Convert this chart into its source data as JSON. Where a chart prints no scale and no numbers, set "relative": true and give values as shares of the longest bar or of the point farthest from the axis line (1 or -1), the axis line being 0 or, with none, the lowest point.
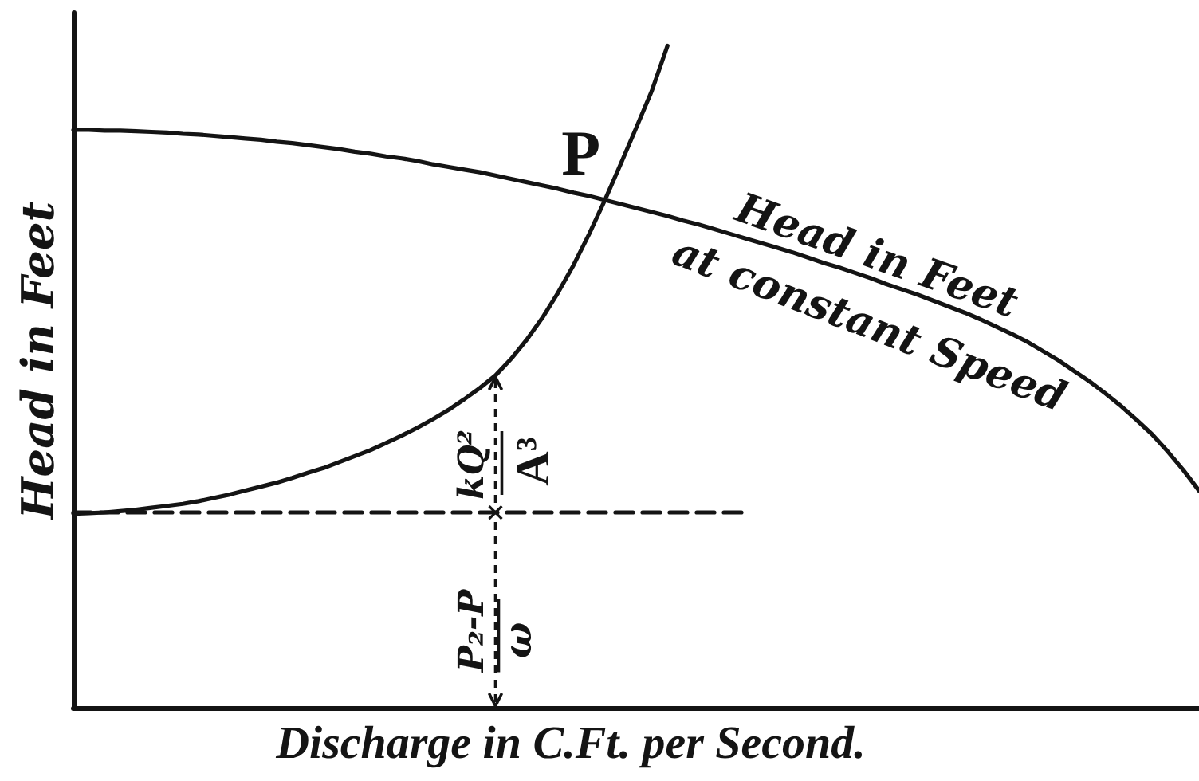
{
  "chart_data": {
    "type": "line",
    "relative": true,
    "tick_labels": false,
    "xlabel": "Discharge in C.Ft. per Second.",
    "ylabel": "Head in Feet",
    "categories": [
      null,
      null,
      null,
      null,
      null,
      null,
      null,
      null,
      null,
      null,
      null,
      null,
      null,
      null,
      null,
      null,
      null,
      null,
      null,
      null,
      null,
      null,
      null,
      null,
      null,
      null,
      null,
      null,
      null,
      null,
      null,
      null,
      null,
      null,
      null,
      null,
      null,
      null,
      null,
      null,
      null,
      null,
      null,
      null,
      null,
      null,
      null,
      null,
      null,
      null,
      null,
      null,
      null,
      null,
      null,
      null,
      null,
      null,
      null,
      null,
      null,
      null,
      null,
      null,
      null,
      null,
      null,
      null,
      null,
      null,
      null,
      null,
      null
    ],
    "series": [
      {
        "name": "Head in Feet at constant Speed",
        "color": "#141414",
        "values": [
          0.873,
          0.873,
          0.872,
          0.872,
          0.871,
          0.87,
          0.869,
          0.867,
          0.866,
          0.864,
          0.862,
          0.86,
          0.858,
          0.855,
          0.853,
          0.85,
          0.847,
          0.844,
          0.84,
          0.837,
          0.833,
          0.83,
          0.826,
          0.821,
          0.817,
          0.813,
          0.809,
          0.804,
          0.799,
          0.794,
          0.789,
          0.784,
          0.778,
          0.773,
          0.767,
          0.761,
          0.755,
          0.749,
          0.743,
          0.736,
          0.73,
          0.723,
          0.716,
          0.709,
          0.702,
          0.695,
          0.688,
          0.68,
          0.672,
          0.665,
          0.657,
          0.649,
          0.64,
          0.632,
          0.624,
          0.615,
          0.606,
          0.597,
          0.587,
          0.576,
          0.565,
          0.553,
          0.539,
          0.525,
          0.509,
          0.493,
          0.475,
          0.456,
          0.435,
          0.413,
          0.387,
          0.359,
          0.328
        ]
      },
      {
        "color": "#141414",
        "values": [
          0.293,
          0.294,
          0.295,
          0.297,
          0.299,
          0.302,
          0.305,
          0.308,
          0.312,
          0.317,
          0.322,
          0.328,
          0.334,
          0.34,
          0.347,
          0.355,
          0.362,
          0.371,
          0.38,
          0.389,
          0.4,
          0.411,
          0.423,
          0.436,
          0.45,
          0.466,
          0.483,
          0.502,
          0.527,
          0.556,
          0.589,
          0.627,
          0.669,
          0.716,
          0.767,
          0.821,
          0.876,
          0.932,
          1.0,
          null,
          null,
          null,
          null,
          null,
          null,
          null,
          null,
          null,
          null,
          null,
          null,
          null,
          null,
          null,
          null,
          null,
          null,
          null,
          null,
          null,
          null,
          null,
          null,
          null,
          null,
          null,
          null,
          null,
          null,
          null,
          null,
          null,
          null
        ]
      },
      {
        "color": "#141414",
        "line_style": "dashed",
        "values": [
          0.295,
          0.295,
          0.295,
          0.295,
          0.295,
          0.295,
          0.295,
          0.295,
          0.295,
          0.295,
          0.295,
          0.295,
          0.295,
          0.295,
          0.295,
          0.295,
          0.295,
          0.295,
          0.295,
          0.295,
          0.295,
          0.295,
          0.295,
          0.295,
          0.295,
          0.295,
          0.295,
          0.295,
          0.295,
          0.295,
          0.295,
          0.295,
          0.295,
          0.295,
          0.295,
          0.295,
          0.295,
          0.295,
          0.295,
          0.295,
          0.295,
          0.295,
          0.295,
          0.295,
          null,
          null,
          null,
          null,
          null,
          null,
          null,
          null,
          null,
          null,
          null,
          null,
          null,
          null,
          null,
          null,
          null,
          null,
          null,
          null,
          null,
          null,
          null,
          null,
          null,
          null,
          null,
          null,
          null
        ]
      }
    ],
    "annotations": [
      "P",
      "kQ²",
      "A³",
      "P₂-P",
      "ω"
    ]
  }
}
